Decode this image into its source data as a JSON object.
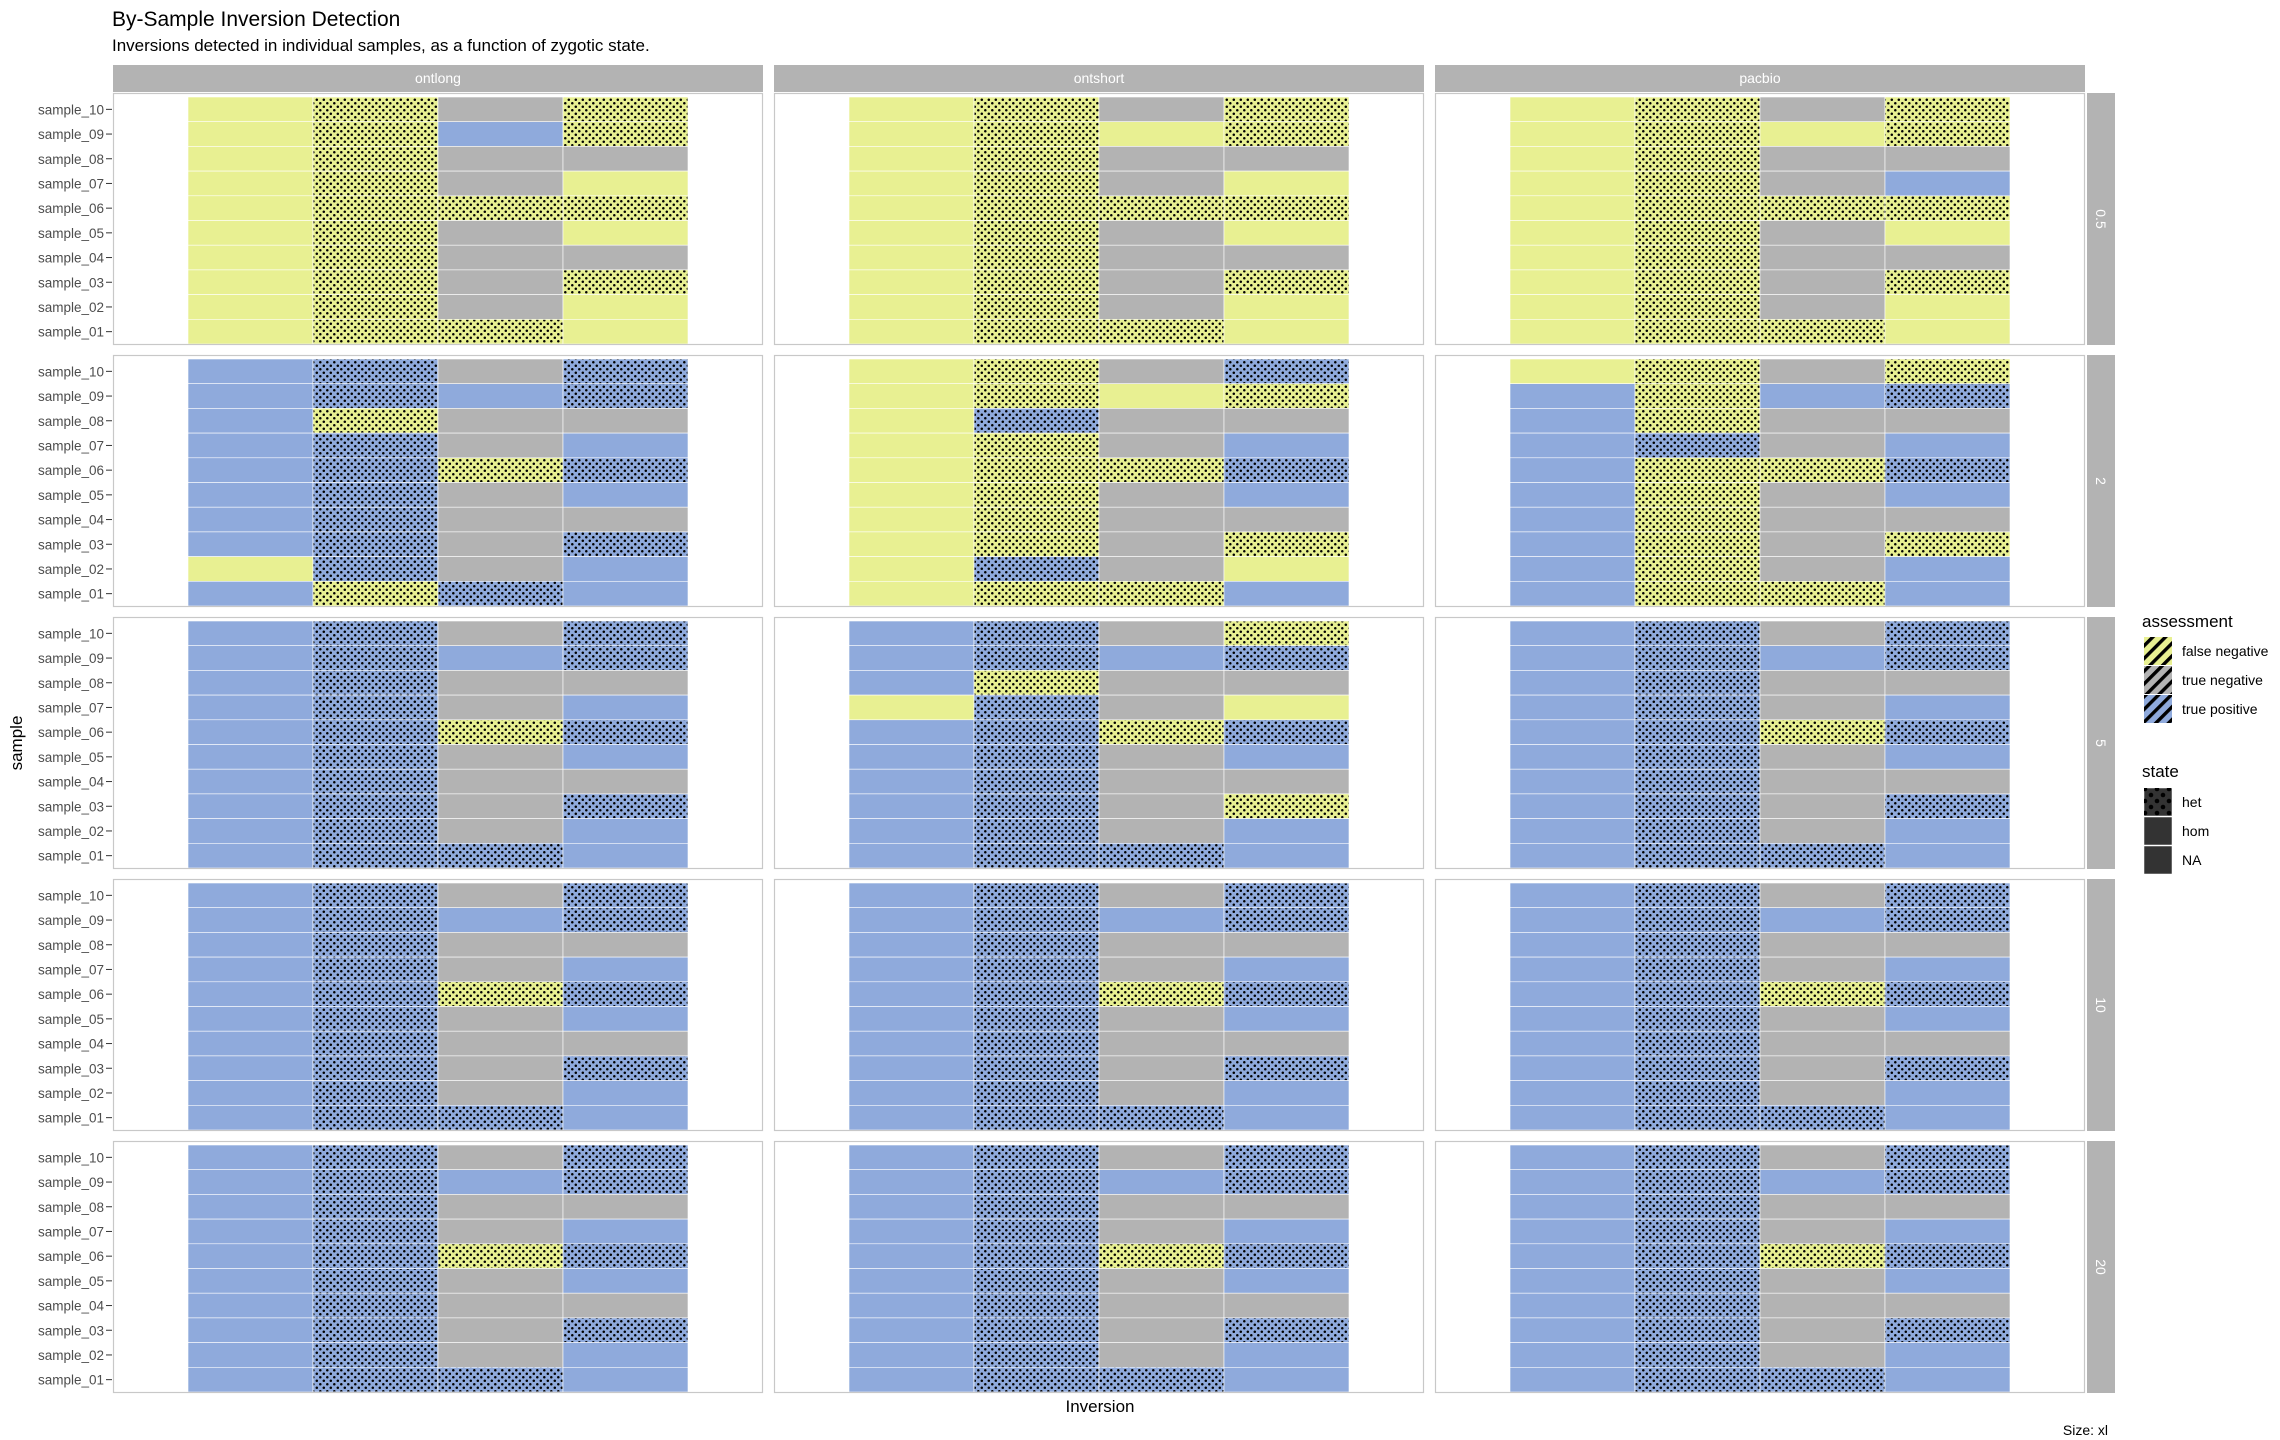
{
  "chart_data": {
    "type": "heatmap",
    "title": "By-Sample Inversion Detection",
    "subtitle": "Inversions detected in individual samples, as a function of zygotic state.",
    "xlabel": "Inversion",
    "ylabel": "sample",
    "caption": "Size: xl",
    "column_facets": [
      "ontlong",
      "ontshort",
      "pacbio"
    ],
    "row_facets": [
      "0.5",
      "2",
      "5",
      "10",
      "20"
    ],
    "samples": [
      "sample_10",
      "sample_09",
      "sample_08",
      "sample_07",
      "sample_06",
      "sample_05",
      "sample_04",
      "sample_03",
      "sample_02",
      "sample_01"
    ],
    "inversion_count": 4,
    "legend": {
      "assessment": {
        "title": "assessment",
        "entries": [
          {
            "key": "F",
            "label": "false negative",
            "color": "#E8F092"
          },
          {
            "key": "N",
            "label": "true negative",
            "color": "#B3B3B3"
          },
          {
            "key": "P",
            "label": "true positive",
            "color": "#8FAADC"
          }
        ]
      },
      "state": {
        "title": "state",
        "entries": [
          {
            "key": "h",
            "label": "het",
            "pattern": "dots"
          },
          {
            "key": "H",
            "label": "hom",
            "pattern": "none"
          },
          {
            "key": "n",
            "label": "NA",
            "pattern": "none"
          }
        ]
      }
    },
    "cell_encoding": "each cell = assessment letter (F/N/P) + zygotic state letter (h=het, H=hom, n=NA); rows ordered as samples, columns = inversions 1-4",
    "cells": {
      "ontlong": {
        "0.5": [
          [
            "FH",
            "Fh",
            "Nn",
            "Fh"
          ],
          [
            "FH",
            "Fh",
            "PH",
            "Fh"
          ],
          [
            "FH",
            "Fh",
            "Nn",
            "Nn"
          ],
          [
            "FH",
            "Fh",
            "Nn",
            "FH"
          ],
          [
            "FH",
            "Fh",
            "Fh",
            "Fh"
          ],
          [
            "FH",
            "Fh",
            "Nn",
            "FH"
          ],
          [
            "FH",
            "Fh",
            "Nn",
            "Nn"
          ],
          [
            "FH",
            "Fh",
            "Nn",
            "Fh"
          ],
          [
            "FH",
            "Fh",
            "Nn",
            "FH"
          ],
          [
            "FH",
            "Fh",
            "Fh",
            "FH"
          ]
        ],
        "2": [
          [
            "PH",
            "Ph",
            "Nn",
            "Ph"
          ],
          [
            "PH",
            "Ph",
            "PH",
            "Ph"
          ],
          [
            "PH",
            "Fh",
            "Nn",
            "Nn"
          ],
          [
            "PH",
            "Ph",
            "Nn",
            "PH"
          ],
          [
            "PH",
            "Ph",
            "Fh",
            "Ph"
          ],
          [
            "PH",
            "Ph",
            "Nn",
            "PH"
          ],
          [
            "PH",
            "Ph",
            "Nn",
            "Nn"
          ],
          [
            "PH",
            "Ph",
            "Nn",
            "Ph"
          ],
          [
            "FH",
            "Ph",
            "Nn",
            "PH"
          ],
          [
            "PH",
            "Fh",
            "Ph",
            "PH"
          ]
        ],
        "5": [
          [
            "PH",
            "Ph",
            "Nn",
            "Ph"
          ],
          [
            "PH",
            "Ph",
            "PH",
            "Ph"
          ],
          [
            "PH",
            "Ph",
            "Nn",
            "Nn"
          ],
          [
            "PH",
            "Ph",
            "Nn",
            "PH"
          ],
          [
            "PH",
            "Ph",
            "Fh",
            "Ph"
          ],
          [
            "PH",
            "Ph",
            "Nn",
            "PH"
          ],
          [
            "PH",
            "Ph",
            "Nn",
            "Nn"
          ],
          [
            "PH",
            "Ph",
            "Nn",
            "Ph"
          ],
          [
            "PH",
            "Ph",
            "Nn",
            "PH"
          ],
          [
            "PH",
            "Ph",
            "Ph",
            "PH"
          ]
        ],
        "10": [
          [
            "PH",
            "Ph",
            "Nn",
            "Ph"
          ],
          [
            "PH",
            "Ph",
            "PH",
            "Ph"
          ],
          [
            "PH",
            "Ph",
            "Nn",
            "Nn"
          ],
          [
            "PH",
            "Ph",
            "Nn",
            "PH"
          ],
          [
            "PH",
            "Ph",
            "Fh",
            "Ph"
          ],
          [
            "PH",
            "Ph",
            "Nn",
            "PH"
          ],
          [
            "PH",
            "Ph",
            "Nn",
            "Nn"
          ],
          [
            "PH",
            "Ph",
            "Nn",
            "Ph"
          ],
          [
            "PH",
            "Ph",
            "Nn",
            "PH"
          ],
          [
            "PH",
            "Ph",
            "Ph",
            "PH"
          ]
        ],
        "20": [
          [
            "PH",
            "Ph",
            "Nn",
            "Ph"
          ],
          [
            "PH",
            "Ph",
            "PH",
            "Ph"
          ],
          [
            "PH",
            "Ph",
            "Nn",
            "Nn"
          ],
          [
            "PH",
            "Ph",
            "Nn",
            "PH"
          ],
          [
            "PH",
            "Ph",
            "Fh",
            "Ph"
          ],
          [
            "PH",
            "Ph",
            "Nn",
            "PH"
          ],
          [
            "PH",
            "Ph",
            "Nn",
            "Nn"
          ],
          [
            "PH",
            "Ph",
            "Nn",
            "Ph"
          ],
          [
            "PH",
            "Ph",
            "Nn",
            "PH"
          ],
          [
            "PH",
            "Ph",
            "Ph",
            "PH"
          ]
        ]
      },
      "ontshort": {
        "0.5": [
          [
            "FH",
            "Fh",
            "Nn",
            "Fh"
          ],
          [
            "FH",
            "Fh",
            "FH",
            "Fh"
          ],
          [
            "FH",
            "Fh",
            "Nn",
            "Nn"
          ],
          [
            "FH",
            "Fh",
            "Nn",
            "FH"
          ],
          [
            "FH",
            "Fh",
            "Fh",
            "Fh"
          ],
          [
            "FH",
            "Fh",
            "Nn",
            "FH"
          ],
          [
            "FH",
            "Fh",
            "Nn",
            "Nn"
          ],
          [
            "FH",
            "Fh",
            "Nn",
            "Fh"
          ],
          [
            "FH",
            "Fh",
            "Nn",
            "FH"
          ],
          [
            "FH",
            "Fh",
            "Fh",
            "FH"
          ]
        ],
        "2": [
          [
            "FH",
            "Fh",
            "Nn",
            "Ph"
          ],
          [
            "FH",
            "Fh",
            "FH",
            "Fh"
          ],
          [
            "FH",
            "Ph",
            "Nn",
            "Nn"
          ],
          [
            "FH",
            "Fh",
            "Nn",
            "PH"
          ],
          [
            "FH",
            "Fh",
            "Fh",
            "Ph"
          ],
          [
            "FH",
            "Fh",
            "Nn",
            "PH"
          ],
          [
            "FH",
            "Fh",
            "Nn",
            "Nn"
          ],
          [
            "FH",
            "Fh",
            "Nn",
            "Fh"
          ],
          [
            "FH",
            "Ph",
            "Nn",
            "FH"
          ],
          [
            "FH",
            "Fh",
            "Fh",
            "PH"
          ]
        ],
        "5": [
          [
            "PH",
            "Ph",
            "Nn",
            "Fh"
          ],
          [
            "PH",
            "Ph",
            "PH",
            "Ph"
          ],
          [
            "PH",
            "Fh",
            "Nn",
            "Nn"
          ],
          [
            "FH",
            "Ph",
            "Nn",
            "FH"
          ],
          [
            "PH",
            "Ph",
            "Fh",
            "Ph"
          ],
          [
            "PH",
            "Ph",
            "Nn",
            "PH"
          ],
          [
            "PH",
            "Ph",
            "Nn",
            "Nn"
          ],
          [
            "PH",
            "Ph",
            "Nn",
            "Fh"
          ],
          [
            "PH",
            "Ph",
            "Nn",
            "PH"
          ],
          [
            "PH",
            "Ph",
            "Ph",
            "PH"
          ]
        ],
        "10": [
          [
            "PH",
            "Ph",
            "Nn",
            "Ph"
          ],
          [
            "PH",
            "Ph",
            "PH",
            "Ph"
          ],
          [
            "PH",
            "Ph",
            "Nn",
            "Nn"
          ],
          [
            "PH",
            "Ph",
            "Nn",
            "PH"
          ],
          [
            "PH",
            "Ph",
            "Fh",
            "Ph"
          ],
          [
            "PH",
            "Ph",
            "Nn",
            "PH"
          ],
          [
            "PH",
            "Ph",
            "Nn",
            "Nn"
          ],
          [
            "PH",
            "Ph",
            "Nn",
            "Ph"
          ],
          [
            "PH",
            "Ph",
            "Nn",
            "PH"
          ],
          [
            "PH",
            "Ph",
            "Ph",
            "PH"
          ]
        ],
        "20": [
          [
            "PH",
            "Ph",
            "Nn",
            "Ph"
          ],
          [
            "PH",
            "Ph",
            "PH",
            "Ph"
          ],
          [
            "PH",
            "Ph",
            "Nn",
            "Nn"
          ],
          [
            "PH",
            "Ph",
            "Nn",
            "PH"
          ],
          [
            "PH",
            "Ph",
            "Fh",
            "Ph"
          ],
          [
            "PH",
            "Ph",
            "Nn",
            "PH"
          ],
          [
            "PH",
            "Ph",
            "Nn",
            "Nn"
          ],
          [
            "PH",
            "Ph",
            "Nn",
            "Ph"
          ],
          [
            "PH",
            "Ph",
            "Nn",
            "PH"
          ],
          [
            "PH",
            "Ph",
            "Ph",
            "PH"
          ]
        ]
      },
      "pacbio": {
        "0.5": [
          [
            "FH",
            "Fh",
            "Nn",
            "Fh"
          ],
          [
            "FH",
            "Fh",
            "FH",
            "Fh"
          ],
          [
            "FH",
            "Fh",
            "Nn",
            "Nn"
          ],
          [
            "FH",
            "Fh",
            "Nn",
            "PH"
          ],
          [
            "FH",
            "Fh",
            "Fh",
            "Fh"
          ],
          [
            "FH",
            "Fh",
            "Nn",
            "FH"
          ],
          [
            "FH",
            "Fh",
            "Nn",
            "Nn"
          ],
          [
            "FH",
            "Fh",
            "Nn",
            "Fh"
          ],
          [
            "FH",
            "Fh",
            "Nn",
            "FH"
          ],
          [
            "FH",
            "Fh",
            "Fh",
            "FH"
          ]
        ],
        "2": [
          [
            "FH",
            "Fh",
            "Nn",
            "Fh"
          ],
          [
            "PH",
            "Fh",
            "PH",
            "Ph"
          ],
          [
            "PH",
            "Fh",
            "Nn",
            "Nn"
          ],
          [
            "PH",
            "Ph",
            "Nn",
            "PH"
          ],
          [
            "PH",
            "Fh",
            "Fh",
            "Ph"
          ],
          [
            "PH",
            "Fh",
            "Nn",
            "PH"
          ],
          [
            "PH",
            "Fh",
            "Nn",
            "Nn"
          ],
          [
            "PH",
            "Fh",
            "Nn",
            "Fh"
          ],
          [
            "PH",
            "Fh",
            "Nn",
            "PH"
          ],
          [
            "PH",
            "Fh",
            "Fh",
            "PH"
          ]
        ],
        "5": [
          [
            "PH",
            "Ph",
            "Nn",
            "Ph"
          ],
          [
            "PH",
            "Ph",
            "PH",
            "Ph"
          ],
          [
            "PH",
            "Ph",
            "Nn",
            "Nn"
          ],
          [
            "PH",
            "Ph",
            "Nn",
            "PH"
          ],
          [
            "PH",
            "Ph",
            "Fh",
            "Ph"
          ],
          [
            "PH",
            "Ph",
            "Nn",
            "PH"
          ],
          [
            "PH",
            "Ph",
            "Nn",
            "Nn"
          ],
          [
            "PH",
            "Ph",
            "Nn",
            "Ph"
          ],
          [
            "PH",
            "Ph",
            "Nn",
            "PH"
          ],
          [
            "PH",
            "Ph",
            "Ph",
            "PH"
          ]
        ],
        "10": [
          [
            "PH",
            "Ph",
            "Nn",
            "Ph"
          ],
          [
            "PH",
            "Ph",
            "PH",
            "Ph"
          ],
          [
            "PH",
            "Ph",
            "Nn",
            "Nn"
          ],
          [
            "PH",
            "Ph",
            "Nn",
            "PH"
          ],
          [
            "PH",
            "Ph",
            "Fh",
            "Ph"
          ],
          [
            "PH",
            "Ph",
            "Nn",
            "PH"
          ],
          [
            "PH",
            "Ph",
            "Nn",
            "Nn"
          ],
          [
            "PH",
            "Ph",
            "Nn",
            "Ph"
          ],
          [
            "PH",
            "Ph",
            "Nn",
            "PH"
          ],
          [
            "PH",
            "Ph",
            "Ph",
            "PH"
          ]
        ],
        "20": [
          [
            "PH",
            "Ph",
            "Nn",
            "Ph"
          ],
          [
            "PH",
            "Ph",
            "PH",
            "Ph"
          ],
          [
            "PH",
            "Ph",
            "Nn",
            "Nn"
          ],
          [
            "PH",
            "Ph",
            "Nn",
            "PH"
          ],
          [
            "PH",
            "Ph",
            "Fh",
            "Ph"
          ],
          [
            "PH",
            "Ph",
            "Nn",
            "PH"
          ],
          [
            "PH",
            "Ph",
            "Nn",
            "Nn"
          ],
          [
            "PH",
            "Ph",
            "Nn",
            "Ph"
          ],
          [
            "PH",
            "Ph",
            "Nn",
            "PH"
          ],
          [
            "PH",
            "Ph",
            "Ph",
            "PH"
          ]
        ]
      }
    }
  }
}
